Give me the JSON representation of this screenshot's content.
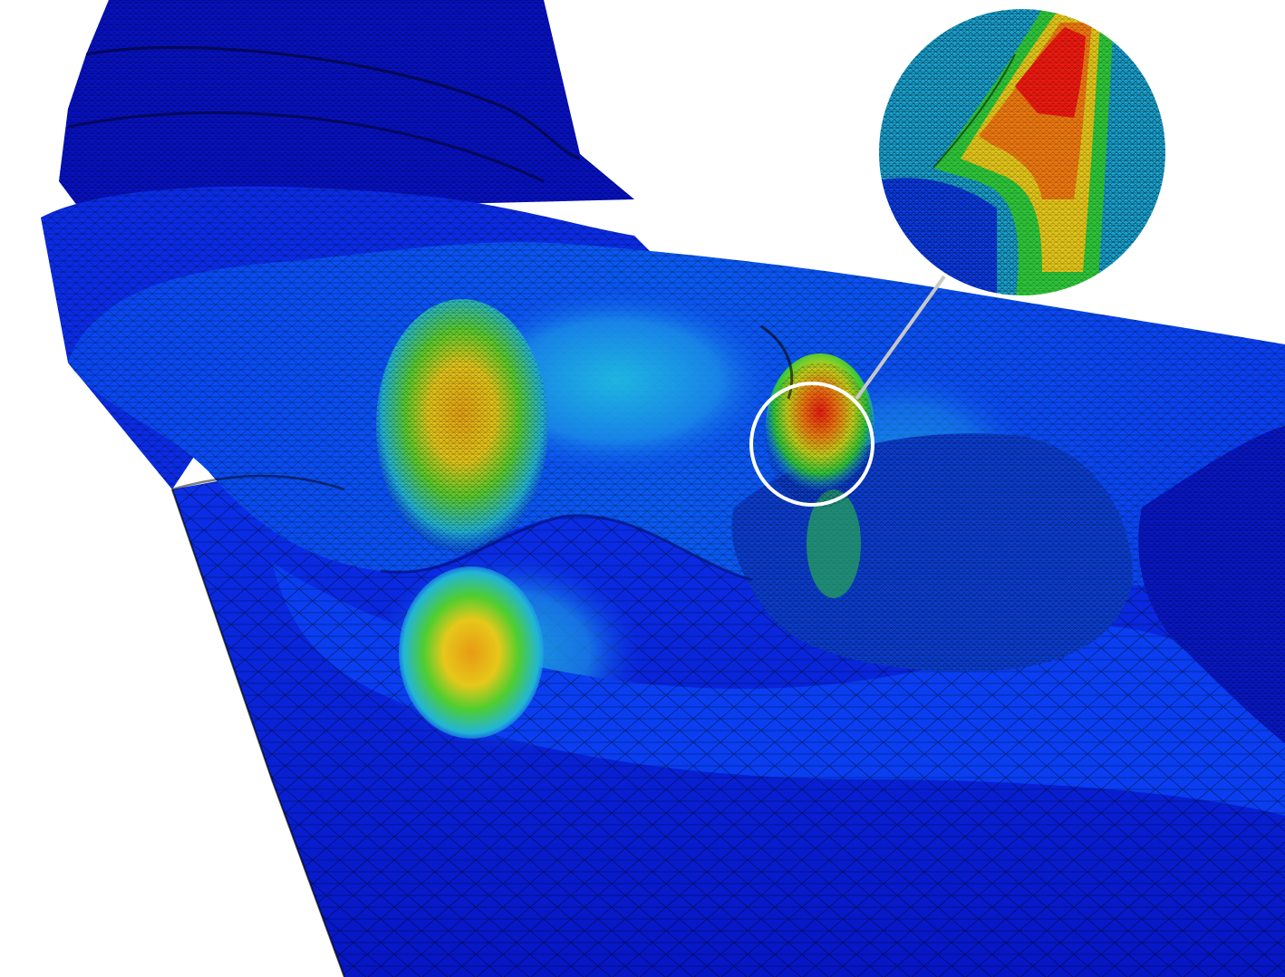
{
  "figure": {
    "palette": {
      "background": "#ffffff",
      "deep_blue": "#0a17d8",
      "blue": "#0a3cf0",
      "cyan": "#1fb8e0",
      "green": "#2fc83a",
      "yellow": "#e6c81a",
      "orange": "#f07a10",
      "red": "#f01a10",
      "mesh_lines": "#000000",
      "highlight_ring": "#ffffff",
      "leader_line": "#c8c8c8"
    },
    "colormap": "jet",
    "subject": "dental-arch-finite-element-mesh",
    "zoom_inset": true
  }
}
